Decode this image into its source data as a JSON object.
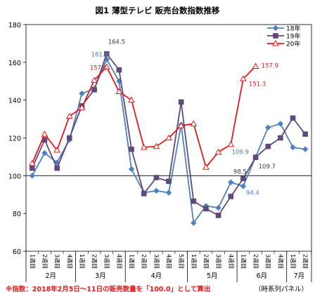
{
  "chart_data": {
    "type": "line",
    "title": "図1  薄型テレビ  販売台数指数推移",
    "note": "※指数：2018年2月5日～11日の販売数量を「100.0」として算出",
    "source": "（時系列パネル）",
    "ylim": [
      60,
      180
    ],
    "yticks": [
      60,
      80,
      100,
      120,
      140,
      160,
      180
    ],
    "week_labels": [
      "1週目",
      "2週目",
      "3週目",
      "4週目",
      "1週目",
      "2週目",
      "3週目",
      "4週目",
      "1週目",
      "2週目",
      "3週目",
      "4週目",
      "5週目",
      "1週目",
      "2週目",
      "3週目",
      "4週目",
      "1週目",
      "2週目",
      "3週目",
      "4週目",
      "1週目",
      "2週目"
    ],
    "months": [
      {
        "label": "2月",
        "start": 0,
        "end": 3
      },
      {
        "label": "3月",
        "start": 4,
        "end": 7
      },
      {
        "label": "4月",
        "start": 8,
        "end": 12
      },
      {
        "label": "5月",
        "start": 13,
        "end": 16
      },
      {
        "label": "6月",
        "start": 17,
        "end": 20
      },
      {
        "label": "7月",
        "start": 21,
        "end": 22
      }
    ],
    "grid": false,
    "reference_line": 100,
    "legend_position": "top-right",
    "series": [
      {
        "name": "18年",
        "color": "#4f81bd",
        "marker": "diamond",
        "values": [
          100,
          112,
          107,
          119,
          143.5,
          146,
          161.6,
          150,
          103.5,
          91,
          92,
          91,
          127,
          75,
          84,
          83,
          96.5,
          94.4,
          109.9,
          125.5,
          127.5,
          115,
          114
        ]
      },
      {
        "name": "19年",
        "color": "#604a7b",
        "marker": "square",
        "values": [
          104,
          119,
          104,
          120,
          137,
          145.5,
          164.5,
          156,
          114,
          90.5,
          99,
          97,
          139,
          86.5,
          82.5,
          79,
          89,
          98.5,
          109.7,
          115.5,
          120,
          130.5,
          122
        ]
      },
      {
        "name": "20年",
        "color": "#e31a1c",
        "marker": "triangle",
        "values": [
          106.5,
          122,
          113.5,
          131.5,
          136,
          150.5,
          157.6,
          144.5,
          140,
          115,
          115.5,
          120,
          126.5,
          127.5,
          104.5,
          112.5,
          116.5,
          151.3,
          157.9,
          null,
          null,
          null,
          null
        ]
      }
    ],
    "annotations": [
      {
        "text": "164.5",
        "series": 1,
        "index": 6,
        "color": "#404040"
      },
      {
        "text": "161.6",
        "series": 0,
        "index": 6,
        "color": "#4f81bd"
      },
      {
        "text": "157.6",
        "series": 2,
        "index": 6,
        "color": "#e31a1c"
      },
      {
        "text": "157.9",
        "series": 2,
        "index": 18,
        "color": "#e31a1c"
      },
      {
        "text": "151.3",
        "series": 2,
        "index": 17,
        "color": "#e31a1c"
      },
      {
        "text": "109.9",
        "series": 0,
        "index": 18,
        "color": "#4f81bd"
      },
      {
        "text": "109.7",
        "series": 1,
        "index": 18,
        "color": "#404040"
      },
      {
        "text": "98.5",
        "series": 1,
        "index": 17,
        "color": "#404040"
      },
      {
        "text": "94.4",
        "series": 0,
        "index": 17,
        "color": "#4f81bd"
      }
    ]
  }
}
